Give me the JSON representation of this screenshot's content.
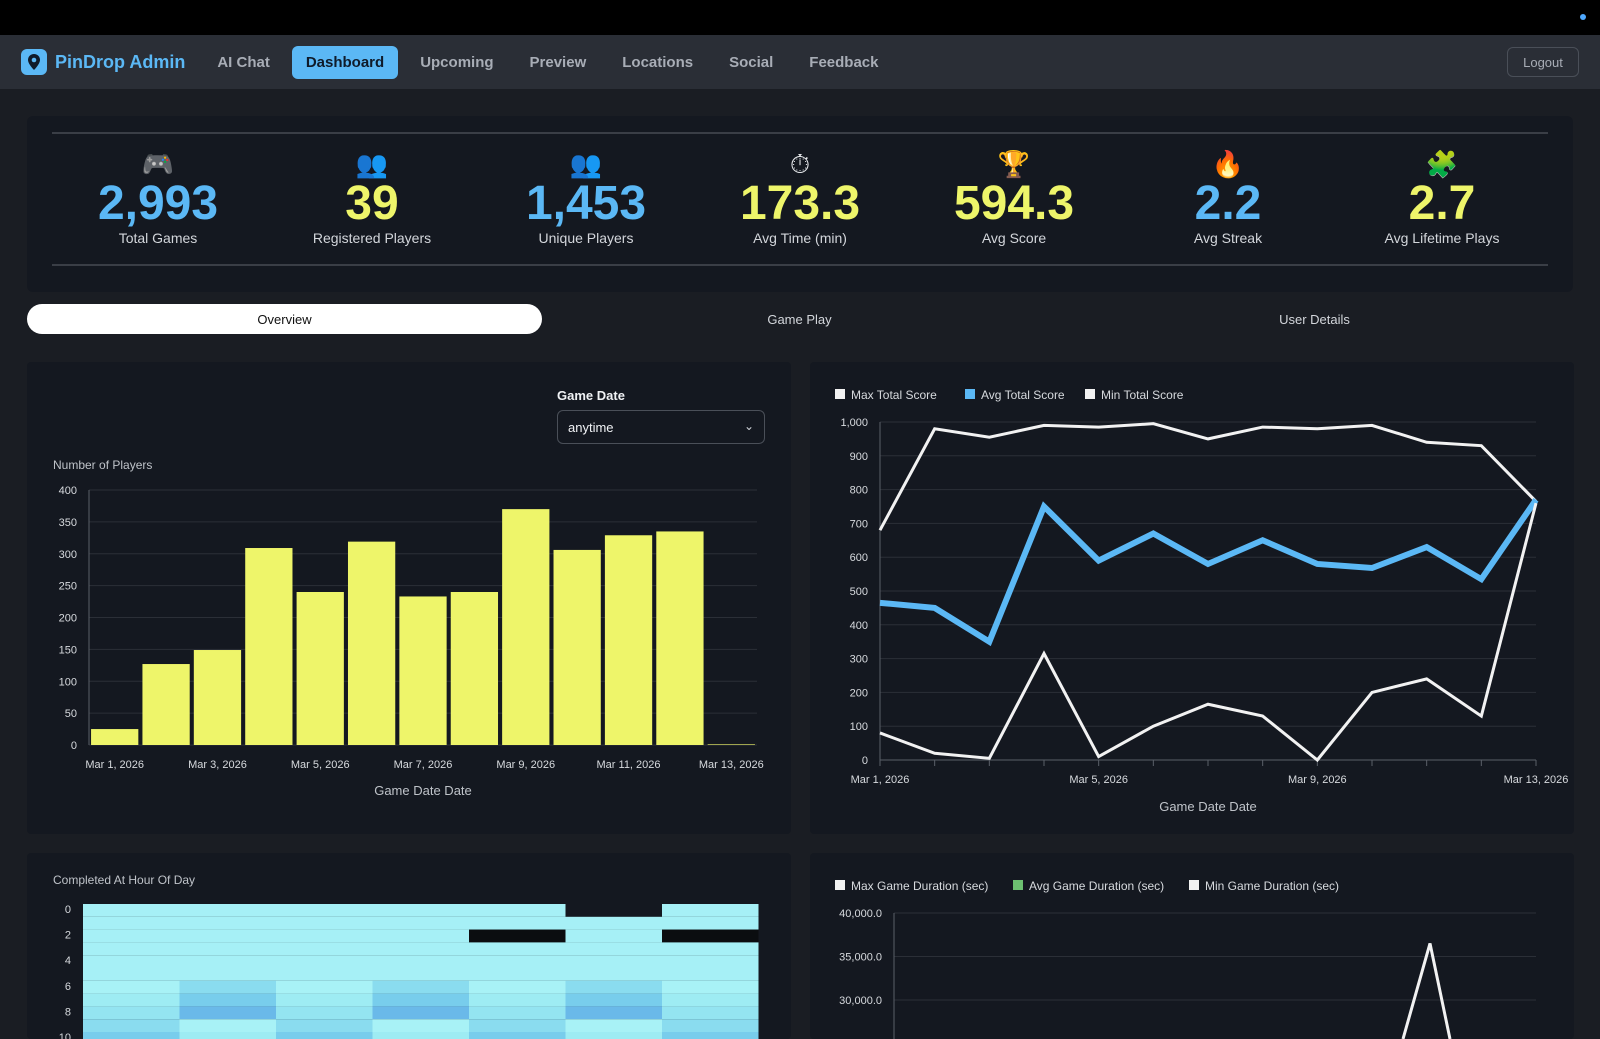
{
  "nav": {
    "brand": "PinDrop Admin",
    "items": [
      {
        "label": "AI Chat",
        "active": false
      },
      {
        "label": "Dashboard",
        "active": true
      },
      {
        "label": "Upcoming",
        "active": false
      },
      {
        "label": "Preview",
        "active": false
      },
      {
        "label": "Locations",
        "active": false
      },
      {
        "label": "Social",
        "active": false
      },
      {
        "label": "Feedback",
        "active": false
      }
    ],
    "logout": "Logout"
  },
  "stats": [
    {
      "icon": "🎮",
      "icon_name": "game-controller-icon",
      "value": "2,993",
      "label": "Total Games",
      "color": "#5bb8f5"
    },
    {
      "icon": "👥",
      "icon_name": "people-icon",
      "value": "39",
      "label": "Registered Players",
      "color": "#eef56a"
    },
    {
      "icon": "👥",
      "icon_name": "people-icon",
      "value": "1,453",
      "label": "Unique Players",
      "color": "#5bb8f5"
    },
    {
      "icon": "⏱",
      "icon_name": "stopwatch-icon",
      "value": "173.3",
      "label": "Avg Time (min)",
      "color": "#eef56a"
    },
    {
      "icon": "🏆",
      "icon_name": "trophy-icon",
      "value": "594.3",
      "label": "Avg Score",
      "color": "#eef56a"
    },
    {
      "icon": "🔥",
      "icon_name": "fire-icon",
      "value": "2.2",
      "label": "Avg Streak",
      "color": "#5bb8f5"
    },
    {
      "icon": "🧩",
      "icon_name": "puzzle-icon",
      "value": "2.7",
      "label": "Avg Lifetime Plays",
      "color": "#eef56a"
    }
  ],
  "tabs": [
    {
      "label": "Overview",
      "active": true
    },
    {
      "label": "Game Play",
      "active": false
    },
    {
      "label": "User Details",
      "active": false
    }
  ],
  "filter": {
    "label": "Game Date",
    "value": "anytime"
  },
  "colors": {
    "yellow": "#eef56a",
    "blue": "#5bb8f5",
    "white": "#f2f2f2",
    "green": "#6cc070"
  },
  "chart_data": [
    {
      "type": "bar",
      "ylabel": "Number of Players",
      "xlabel": "Game Date Date",
      "ylim": [
        0,
        400
      ],
      "yticks": [
        0,
        50,
        100,
        150,
        200,
        250,
        300,
        350,
        400
      ],
      "categories": [
        "Mar 1, 2026",
        "Mar 2, 2026",
        "Mar 3, 2026",
        "Mar 4, 2026",
        "Mar 5, 2026",
        "Mar 6, 2026",
        "Mar 7, 2026",
        "Mar 8, 2026",
        "Mar 9, 2026",
        "Mar 10, 2026",
        "Mar 11, 2026",
        "Mar 12, 2026",
        "Mar 13, 2026"
      ],
      "tick_labels": [
        "Mar 1, 2026",
        "Mar 3, 2026",
        "Mar 5, 2026",
        "Mar 7, 2026",
        "Mar 9, 2026",
        "Mar 11, 2026",
        "Mar 13, 2026"
      ],
      "values": [
        25,
        127,
        149,
        309,
        240,
        319,
        233,
        240,
        370,
        306,
        329,
        335,
        1
      ],
      "color": "#eef56a",
      "grid": true
    },
    {
      "type": "line",
      "xlabel": "Game Date Date",
      "ylim": [
        0,
        1000
      ],
      "yticks": [
        "0",
        "100",
        "200",
        "300",
        "400",
        "500",
        "600",
        "700",
        "800",
        "900",
        "1,000"
      ],
      "x": [
        "Mar 1, 2026",
        "Mar 2, 2026",
        "Mar 3, 2026",
        "Mar 4, 2026",
        "Mar 5, 2026",
        "Mar 6, 2026",
        "Mar 7, 2026",
        "Mar 8, 2026",
        "Mar 9, 2026",
        "Mar 10, 2026",
        "Mar 11, 2026",
        "Mar 12, 2026",
        "Mar 13, 2026"
      ],
      "tick_labels": [
        "Mar 1, 2026",
        "Mar 5, 2026",
        "Mar 9, 2026",
        "Mar 13, 2026"
      ],
      "legend_position": "top-left",
      "grid": true,
      "series": [
        {
          "name": "Max Total Score",
          "color": "#f2f2f2",
          "width": 3,
          "values": [
            680,
            980,
            955,
            990,
            985,
            995,
            950,
            985,
            980,
            990,
            940,
            930,
            765
          ]
        },
        {
          "name": "Avg Total Score",
          "color": "#5bb8f5",
          "width": 6,
          "values": [
            465,
            450,
            350,
            750,
            590,
            670,
            580,
            650,
            580,
            568,
            630,
            535,
            770
          ]
        },
        {
          "name": "Min Total Score",
          "color": "#f2f2f2",
          "width": 3,
          "values": [
            80,
            20,
            5,
            315,
            10,
            100,
            165,
            130,
            0,
            200,
            240,
            130,
            760
          ]
        }
      ]
    },
    {
      "type": "heatmap",
      "ylabel": "Completed At Hour Of Day",
      "yticks": [
        "0",
        "2",
        "4",
        "6",
        "8",
        "10"
      ]
    },
    {
      "type": "line",
      "ylim": [
        25000,
        40000
      ],
      "yticks": [
        "30,000.0",
        "35,000.0",
        "40,000.0"
      ],
      "legend_position": "top-left",
      "series": [
        {
          "name": "Max Game Duration (sec)",
          "color": "#f2f2f2"
        },
        {
          "name": "Avg Game Duration (sec)",
          "color": "#6cc070"
        },
        {
          "name": "Min Game Duration (sec)",
          "color": "#f2f2f2"
        }
      ],
      "visible_peak": 36500
    }
  ]
}
